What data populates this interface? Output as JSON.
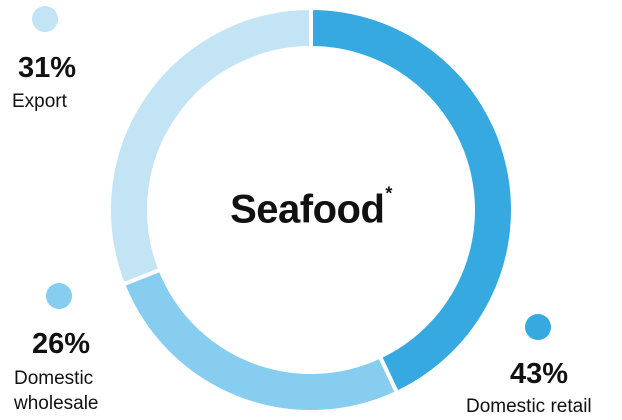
{
  "chart_data": {
    "type": "pie",
    "center_label": "Seafood",
    "center_label_marker": "*",
    "categories": [
      "Domestic retail",
      "Domestic wholesale",
      "Export"
    ],
    "values": [
      43,
      26,
      31
    ],
    "value_labels": [
      "43%",
      "26%",
      "31%"
    ],
    "colors": [
      "#35a9e0",
      "#86cdf0",
      "#c2e4f5"
    ],
    "legend_placement": "around"
  }
}
